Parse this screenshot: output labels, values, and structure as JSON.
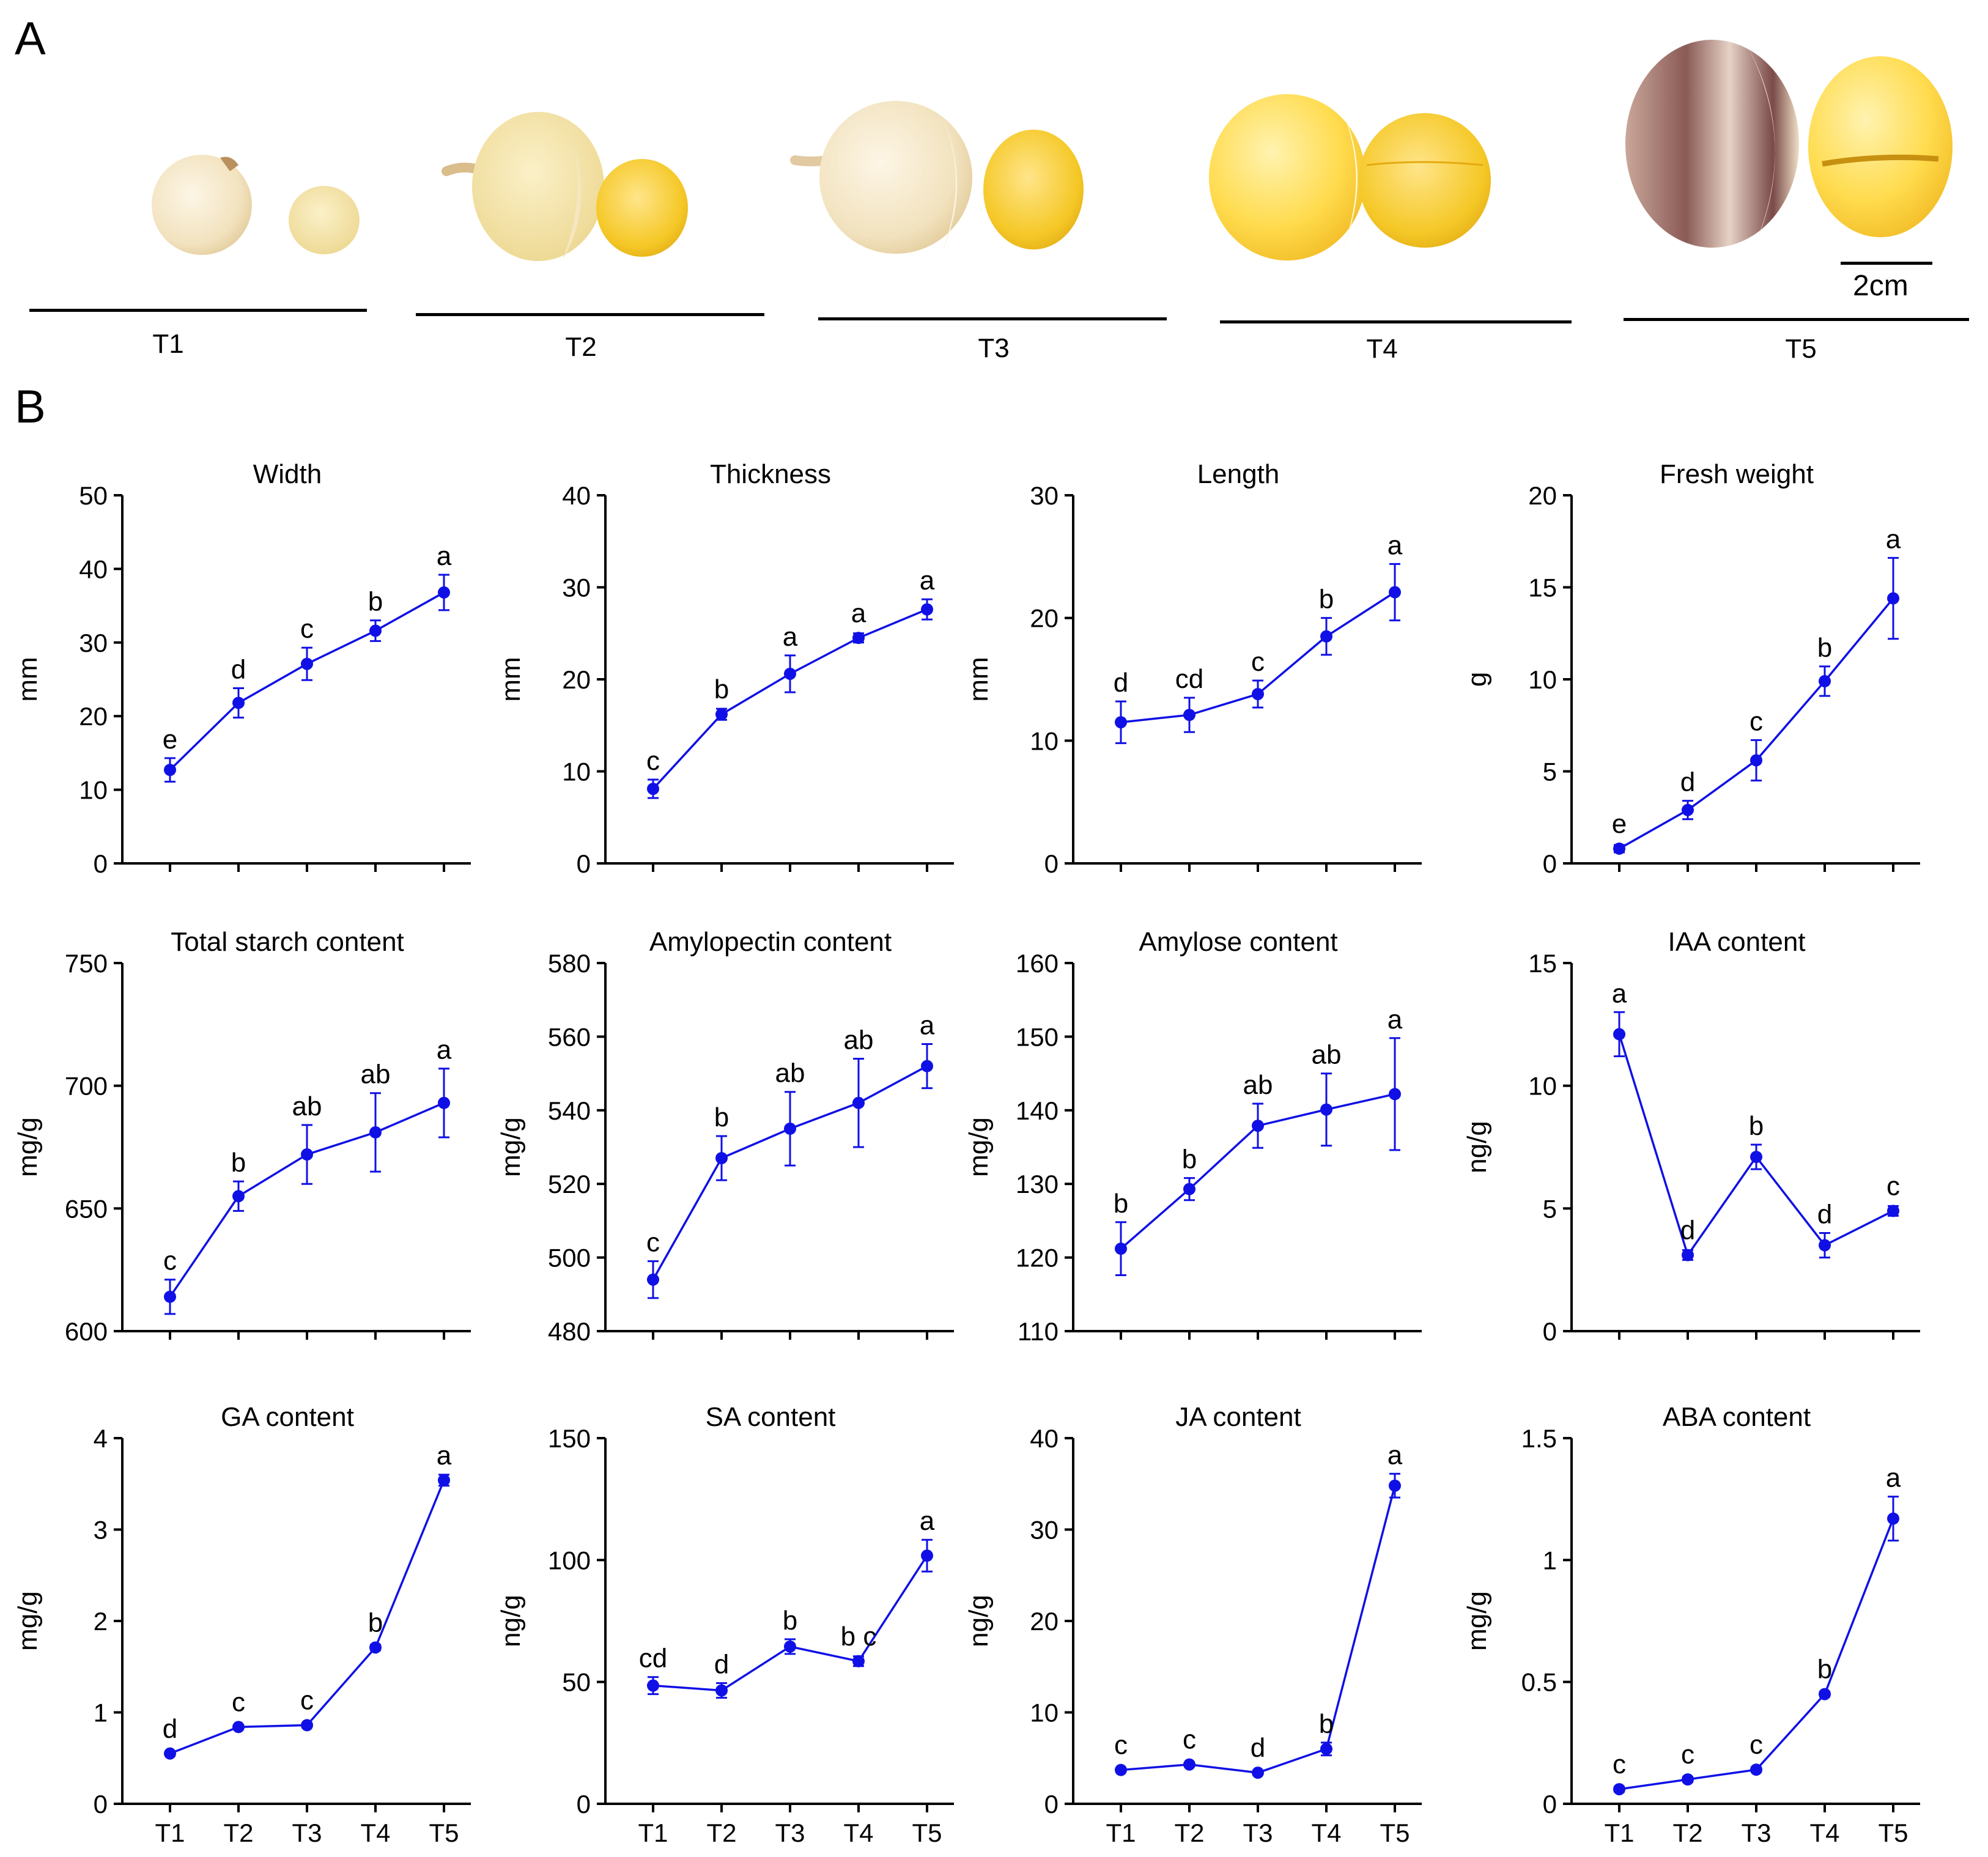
{
  "panel_labels": {
    "a": "A",
    "b": "B"
  },
  "panel_a": {
    "stages": [
      "T1",
      "T2",
      "T3",
      "T4",
      "T5"
    ],
    "scale_label": "2cm"
  },
  "colors": {
    "series": "#1010e6",
    "axis": "#000000"
  },
  "chart_data": [
    {
      "type": "line",
      "title": "Width",
      "ylabel": "mm",
      "categories": [
        "T1",
        "T2",
        "T3",
        "T4",
        "T5"
      ],
      "ylim": [
        0,
        50
      ],
      "yticks": [
        0,
        10,
        20,
        30,
        40,
        50
      ],
      "yticklabels": [
        "0",
        "10",
        "20",
        "30",
        "40",
        "50"
      ],
      "show_xticklabels": false,
      "values": [
        12.7,
        21.8,
        27.1,
        31.6,
        36.8
      ],
      "errors": [
        1.6,
        2.0,
        2.2,
        1.4,
        2.4
      ],
      "letters": [
        "e",
        "d",
        "c",
        "b",
        "a"
      ]
    },
    {
      "type": "line",
      "title": "Thickness",
      "ylabel": "mm",
      "categories": [
        "T1",
        "T2",
        "T3",
        "T4",
        "T5"
      ],
      "ylim": [
        0,
        40
      ],
      "yticks": [
        0,
        10,
        20,
        30,
        40
      ],
      "yticklabels": [
        "0",
        "10",
        "20",
        "30",
        "40"
      ],
      "show_xticklabels": false,
      "values": [
        8.1,
        16.2,
        20.6,
        24.5,
        27.6
      ],
      "errors": [
        1.0,
        0.6,
        2.0,
        0.5,
        1.1
      ],
      "letters": [
        "c",
        "b",
        "a",
        "a",
        "a"
      ]
    },
    {
      "type": "line",
      "title": "Length",
      "ylabel": "mm",
      "categories": [
        "T1",
        "T2",
        "T3",
        "T4",
        "T5"
      ],
      "ylim": [
        0,
        30
      ],
      "yticks": [
        0,
        10,
        20,
        30
      ],
      "yticklabels": [
        "0",
        "10",
        "20",
        "30"
      ],
      "show_xticklabels": false,
      "values": [
        11.5,
        12.1,
        13.8,
        18.5,
        22.1
      ],
      "errors": [
        1.7,
        1.4,
        1.1,
        1.5,
        2.3
      ],
      "letters": [
        "d",
        "cd",
        "c",
        "b",
        "a"
      ]
    },
    {
      "type": "line",
      "title": "Fresh weight",
      "ylabel": "g",
      "categories": [
        "T1",
        "T2",
        "T3",
        "T4",
        "T5"
      ],
      "ylim": [
        0,
        20
      ],
      "yticks": [
        0,
        5,
        10,
        15,
        20
      ],
      "yticklabels": [
        "0",
        "5",
        "10",
        "15",
        "20"
      ],
      "show_xticklabels": false,
      "values": [
        0.8,
        2.9,
        5.6,
        9.9,
        14.4
      ],
      "errors": [
        0.2,
        0.5,
        1.1,
        0.8,
        2.2
      ],
      "letters": [
        "e",
        "d",
        "c",
        "b",
        "a"
      ]
    },
    {
      "type": "line",
      "title": "Total starch content",
      "ylabel": "mg/g",
      "categories": [
        "T1",
        "T2",
        "T3",
        "T4",
        "T5"
      ],
      "ylim": [
        600,
        750
      ],
      "yticks": [
        600,
        650,
        700,
        750
      ],
      "yticklabels": [
        "600",
        "650",
        "700",
        "750"
      ],
      "show_xticklabels": false,
      "values": [
        614,
        655,
        672,
        681,
        693
      ],
      "errors": [
        7,
        6,
        12,
        16,
        14
      ],
      "letters": [
        "c",
        "b",
        "ab",
        "ab",
        "a"
      ]
    },
    {
      "type": "line",
      "title": "Amylopectin content",
      "ylabel": "mg/g",
      "categories": [
        "T1",
        "T2",
        "T3",
        "T4",
        "T5"
      ],
      "ylim": [
        480,
        580
      ],
      "yticks": [
        480,
        500,
        520,
        540,
        560,
        580
      ],
      "yticklabels": [
        "480",
        "500",
        "520",
        "540",
        "560",
        "580"
      ],
      "show_xticklabels": false,
      "values": [
        494,
        527,
        535,
        542,
        552
      ],
      "errors": [
        5,
        6,
        10,
        12,
        6
      ],
      "letters": [
        "c",
        "b",
        "ab",
        "ab",
        "a"
      ]
    },
    {
      "type": "line",
      "title": "Amylose content",
      "ylabel": "mg/g",
      "categories": [
        "T1",
        "T2",
        "T3",
        "T4",
        "T5"
      ],
      "ylim": [
        110,
        160
      ],
      "yticks": [
        110,
        120,
        130,
        140,
        150,
        160
      ],
      "yticklabels": [
        "110",
        "120",
        "130",
        "140",
        "150",
        "160"
      ],
      "show_xticklabels": false,
      "values": [
        121.2,
        129.3,
        137.9,
        140.1,
        142.2
      ],
      "errors": [
        3.6,
        1.5,
        3.0,
        4.9,
        7.6
      ],
      "letters": [
        "b",
        "b",
        "ab",
        "ab",
        "a"
      ]
    },
    {
      "type": "line",
      "title": "IAA content",
      "ylabel": "ng/g",
      "categories": [
        "T1",
        "T2",
        "T3",
        "T4",
        "T5"
      ],
      "ylim": [
        0,
        15
      ],
      "yticks": [
        0,
        5,
        10,
        15
      ],
      "yticklabels": [
        "0",
        "5",
        "10",
        "15"
      ],
      "show_xticklabels": false,
      "values": [
        12.1,
        3.1,
        7.1,
        3.5,
        4.9
      ],
      "errors": [
        0.9,
        0.2,
        0.5,
        0.5,
        0.2
      ],
      "letters": [
        "a",
        "d",
        "b",
        "d",
        "c"
      ]
    },
    {
      "type": "line",
      "title": "GA content",
      "ylabel": "mg/g",
      "categories": [
        "T1",
        "T2",
        "T3",
        "T4",
        "T5"
      ],
      "ylim": [
        0,
        4
      ],
      "yticks": [
        0,
        1,
        2,
        3,
        4
      ],
      "yticklabels": [
        "0",
        "1",
        "2",
        "3",
        "4"
      ],
      "show_xticklabels": true,
      "values": [
        0.55,
        0.84,
        0.86,
        1.71,
        3.54
      ],
      "errors": [
        0.02,
        0.02,
        0.02,
        0.03,
        0.06
      ],
      "letters": [
        "d",
        "c",
        "c",
        "b",
        "a"
      ]
    },
    {
      "type": "line",
      "title": "SA content",
      "ylabel": "ng/g",
      "categories": [
        "T1",
        "T2",
        "T3",
        "T4",
        "T5"
      ],
      "ylim": [
        0,
        150
      ],
      "yticks": [
        0,
        50,
        100,
        150
      ],
      "yticklabels": [
        "0",
        "50",
        "100",
        "150"
      ],
      "show_xticklabels": true,
      "values": [
        48.5,
        46.5,
        64.5,
        58.5,
        101.8
      ],
      "errors": [
        3.5,
        3.0,
        3.0,
        2.0,
        6.5
      ],
      "letters": [
        "cd",
        "d",
        "b",
        "b c",
        "a"
      ]
    },
    {
      "type": "line",
      "title": "JA content",
      "ylabel": "ng/g",
      "categories": [
        "T1",
        "T2",
        "T3",
        "T4",
        "T5"
      ],
      "ylim": [
        0,
        40
      ],
      "yticks": [
        0,
        10,
        20,
        30,
        40
      ],
      "yticklabels": [
        "0",
        "10",
        "20",
        "30",
        "40"
      ],
      "show_xticklabels": true,
      "values": [
        3.7,
        4.3,
        3.4,
        6.0,
        34.8
      ],
      "errors": [
        0.2,
        0.2,
        0.2,
        0.7,
        1.3
      ],
      "letters": [
        "c",
        "c",
        "d",
        "b",
        "a"
      ]
    },
    {
      "type": "line",
      "title": "ABA content",
      "ylabel": "mg/g",
      "categories": [
        "T1",
        "T2",
        "T3",
        "T4",
        "T5"
      ],
      "ylim": [
        0,
        1.5
      ],
      "yticks": [
        0,
        0.5,
        1,
        1.5
      ],
      "yticklabels": [
        "0",
        "0.5",
        "1",
        "1.5"
      ],
      "show_xticklabels": true,
      "values": [
        0.06,
        0.1,
        0.14,
        0.45,
        1.17
      ],
      "errors": [
        0.01,
        0.01,
        0.01,
        0.01,
        0.09
      ],
      "letters": [
        "c",
        "c",
        "c",
        "b",
        "a"
      ]
    }
  ]
}
